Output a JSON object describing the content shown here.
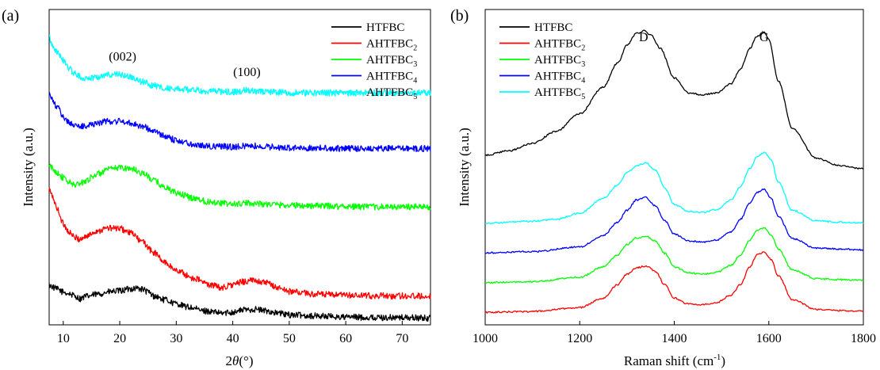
{
  "chart_data": [
    {
      "panel_label": "(a)",
      "type": "line",
      "xlabel_prefix": "2",
      "xlabel_symbol": "θ",
      "xlabel_unit": "(°)",
      "ylabel": "Intensity (a.u.)",
      "xlim": [
        7.5,
        75
      ],
      "xticks": [
        10,
        20,
        30,
        40,
        50,
        60,
        70
      ],
      "y_tick_labels": false,
      "annotations": [
        {
          "text": "(002)",
          "x": 20.5
        },
        {
          "text": "(100)",
          "x": 42.5
        }
      ],
      "legend": {
        "placement": "top-right"
      },
      "series": [
        {
          "name": "HTFBC",
          "base": "HTFBC",
          "sub": "",
          "color": "#000000",
          "x": [
            7.5,
            9,
            10,
            11,
            12,
            13,
            14,
            16,
            18,
            20,
            22,
            23,
            24,
            25,
            26,
            28,
            30,
            32,
            35,
            38,
            40,
            42,
            44,
            46,
            48,
            50,
            55,
            60,
            65,
            70,
            75
          ],
          "y": [
            0.59,
            0.52,
            0.47,
            0.44,
            0.4,
            0.35,
            0.39,
            0.43,
            0.47,
            0.49,
            0.53,
            0.54,
            0.52,
            0.47,
            0.4,
            0.33,
            0.26,
            0.2,
            0.13,
            0.09,
            0.11,
            0.15,
            0.16,
            0.13,
            0.09,
            0.06,
            0.04,
            0.02,
            0.01,
            0.01,
            0.0
          ]
        },
        {
          "name": "AHTFBC2",
          "base": "AHTFBC",
          "sub": "2",
          "color": "#ff0000",
          "x": [
            7.5,
            8,
            9,
            10,
            11,
            12,
            13,
            14,
            16,
            18,
            20,
            22,
            24,
            26,
            28,
            30,
            33,
            36,
            38,
            40,
            42,
            44,
            46,
            48,
            50,
            55,
            60,
            65,
            70,
            75
          ],
          "y": [
            2.32,
            2.2,
            1.95,
            1.7,
            1.55,
            1.45,
            1.42,
            1.47,
            1.57,
            1.62,
            1.61,
            1.53,
            1.37,
            1.18,
            1.0,
            0.86,
            0.72,
            0.6,
            0.55,
            0.6,
            0.66,
            0.68,
            0.63,
            0.55,
            0.48,
            0.43,
            0.41,
            0.4,
            0.4,
            0.4
          ]
        },
        {
          "name": "AHTFBC3",
          "base": "AHTFBC",
          "sub": "3",
          "color": "#00ff00",
          "x": [
            7.5,
            9,
            10,
            11,
            12,
            13,
            14,
            16,
            18,
            20,
            22,
            24,
            26,
            28,
            30,
            33,
            36,
            40,
            43,
            46,
            50,
            55,
            60,
            65,
            70,
            75
          ],
          "y": [
            2.73,
            2.62,
            2.52,
            2.44,
            2.4,
            2.42,
            2.48,
            2.59,
            2.67,
            2.71,
            2.69,
            2.61,
            2.48,
            2.35,
            2.25,
            2.16,
            2.09,
            2.05,
            2.07,
            2.05,
            2.03,
            2.02,
            2.01,
            2.0,
            2.0,
            2.0
          ]
        },
        {
          "name": "AHTFBC4",
          "base": "AHTFBC",
          "sub": "4",
          "color": "#0000ff",
          "x": [
            7.5,
            8,
            9,
            10,
            11,
            12,
            13,
            14,
            16,
            18,
            20,
            22,
            24,
            26,
            28,
            30,
            33,
            36,
            40,
            43,
            46,
            50,
            55,
            60,
            65,
            70,
            75
          ],
          "y": [
            4.05,
            3.92,
            3.78,
            3.62,
            3.52,
            3.47,
            3.44,
            3.46,
            3.51,
            3.54,
            3.54,
            3.51,
            3.45,
            3.36,
            3.27,
            3.2,
            3.13,
            3.09,
            3.08,
            3.1,
            3.08,
            3.06,
            3.06,
            3.05,
            3.05,
            3.05,
            3.05
          ]
        },
        {
          "name": "AHTFBC5",
          "base": "AHTFBC",
          "sub": "5",
          "color": "#00ffff",
          "x": [
            7.5,
            8,
            9,
            10,
            11,
            12,
            13,
            14,
            16,
            18,
            20,
            22,
            24,
            26,
            28,
            30,
            33,
            36,
            40,
            43,
            46,
            50,
            55,
            60,
            65,
            70,
            75
          ],
          "y": [
            5.08,
            4.92,
            4.78,
            4.63,
            4.5,
            4.4,
            4.34,
            4.31,
            4.34,
            4.38,
            4.38,
            4.33,
            4.25,
            4.18,
            4.14,
            4.12,
            4.1,
            4.08,
            4.07,
            4.1,
            4.07,
            4.05,
            4.05,
            4.05,
            4.05,
            4.05,
            4.05
          ]
        }
      ]
    },
    {
      "panel_label": "(b)",
      "type": "line",
      "xlabel": "Raman shift (cm",
      "xlabel_sup": "-1",
      "xlabel_close": ")",
      "ylabel": "Intensity (a.u.)",
      "xlim": [
        1000,
        1800
      ],
      "xticks": [
        1000,
        1200,
        1400,
        1600,
        1800
      ],
      "y_tick_labels": false,
      "annotations": [
        {
          "text": "D",
          "x": 1335
        },
        {
          "text": "G",
          "x": 1590
        }
      ],
      "legend": {
        "placement": "top-left"
      },
      "series": [
        {
          "name": "HTFBC",
          "base": "HTFBC",
          "sub": "",
          "color": "#000000",
          "x": [
            1000,
            1050,
            1100,
            1150,
            1200,
            1250,
            1280,
            1300,
            1320,
            1335,
            1350,
            1370,
            1400,
            1430,
            1460,
            1490,
            1520,
            1540,
            1560,
            1575,
            1590,
            1600,
            1620,
            1650,
            1700,
            1750,
            1800
          ],
          "y": [
            5.3,
            5.45,
            5.7,
            6.1,
            6.7,
            7.6,
            8.4,
            9.0,
            9.4,
            9.48,
            9.35,
            8.9,
            7.9,
            7.4,
            7.33,
            7.4,
            7.7,
            8.2,
            8.9,
            9.3,
            9.45,
            9.2,
            7.8,
            6.2,
            5.2,
            4.95,
            4.85
          ]
        },
        {
          "name": "AHTFBC2",
          "base": "AHTFBC",
          "sub": "2",
          "color": "#ff0000",
          "x": [
            1000,
            1100,
            1200,
            1250,
            1280,
            1300,
            1320,
            1340,
            1360,
            1380,
            1400,
            1430,
            1460,
            1490,
            1520,
            1540,
            1560,
            1575,
            1590,
            1605,
            1620,
            1650,
            1700,
            1750,
            1800
          ],
          "y": [
            0.02,
            0.05,
            0.18,
            0.5,
            0.95,
            1.3,
            1.52,
            1.58,
            1.4,
            0.95,
            0.5,
            0.3,
            0.28,
            0.35,
            0.6,
            0.95,
            1.55,
            1.95,
            2.05,
            1.8,
            1.25,
            0.45,
            0.12,
            0.08,
            0.06
          ]
        },
        {
          "name": "AHTFBC3",
          "base": "AHTFBC",
          "sub": "3",
          "color": "#00ff00",
          "x": [
            1000,
            1100,
            1200,
            1250,
            1280,
            1300,
            1320,
            1340,
            1360,
            1380,
            1400,
            1430,
            1460,
            1490,
            1520,
            1540,
            1560,
            1575,
            1590,
            1605,
            1620,
            1650,
            1700,
            1750,
            1800
          ],
          "y": [
            1.02,
            1.05,
            1.2,
            1.55,
            1.95,
            2.3,
            2.52,
            2.58,
            2.42,
            2.0,
            1.55,
            1.35,
            1.3,
            1.37,
            1.6,
            1.95,
            2.45,
            2.78,
            2.85,
            2.62,
            2.15,
            1.45,
            1.15,
            1.12,
            1.1
          ]
        },
        {
          "name": "AHTFBC4",
          "base": "AHTFBC",
          "sub": "4",
          "color": "#0000ff",
          "x": [
            1000,
            1100,
            1200,
            1250,
            1280,
            1300,
            1320,
            1340,
            1360,
            1380,
            1400,
            1430,
            1460,
            1490,
            1520,
            1540,
            1560,
            1575,
            1590,
            1605,
            1620,
            1650,
            1700,
            1750,
            1800
          ],
          "y": [
            2.02,
            2.06,
            2.22,
            2.6,
            3.05,
            3.45,
            3.8,
            3.88,
            3.6,
            3.1,
            2.65,
            2.42,
            2.38,
            2.45,
            2.72,
            3.15,
            3.7,
            4.05,
            4.15,
            3.85,
            3.25,
            2.5,
            2.18,
            2.15,
            2.12
          ]
        },
        {
          "name": "AHTFBC5",
          "base": "AHTFBC",
          "sub": "5",
          "color": "#00ffff",
          "x": [
            1000,
            1100,
            1150,
            1200,
            1250,
            1280,
            1300,
            1320,
            1340,
            1360,
            1380,
            1400,
            1430,
            1460,
            1490,
            1520,
            1540,
            1560,
            1575,
            1590,
            1605,
            1620,
            1650,
            1700,
            1750,
            1800
          ],
          "y": [
            3.02,
            3.08,
            3.15,
            3.35,
            3.85,
            4.3,
            4.72,
            4.95,
            5.05,
            4.8,
            4.2,
            3.65,
            3.42,
            3.38,
            3.48,
            3.8,
            4.25,
            4.85,
            5.25,
            5.4,
            5.15,
            4.4,
            3.45,
            3.1,
            3.05,
            3.02
          ]
        }
      ]
    }
  ]
}
